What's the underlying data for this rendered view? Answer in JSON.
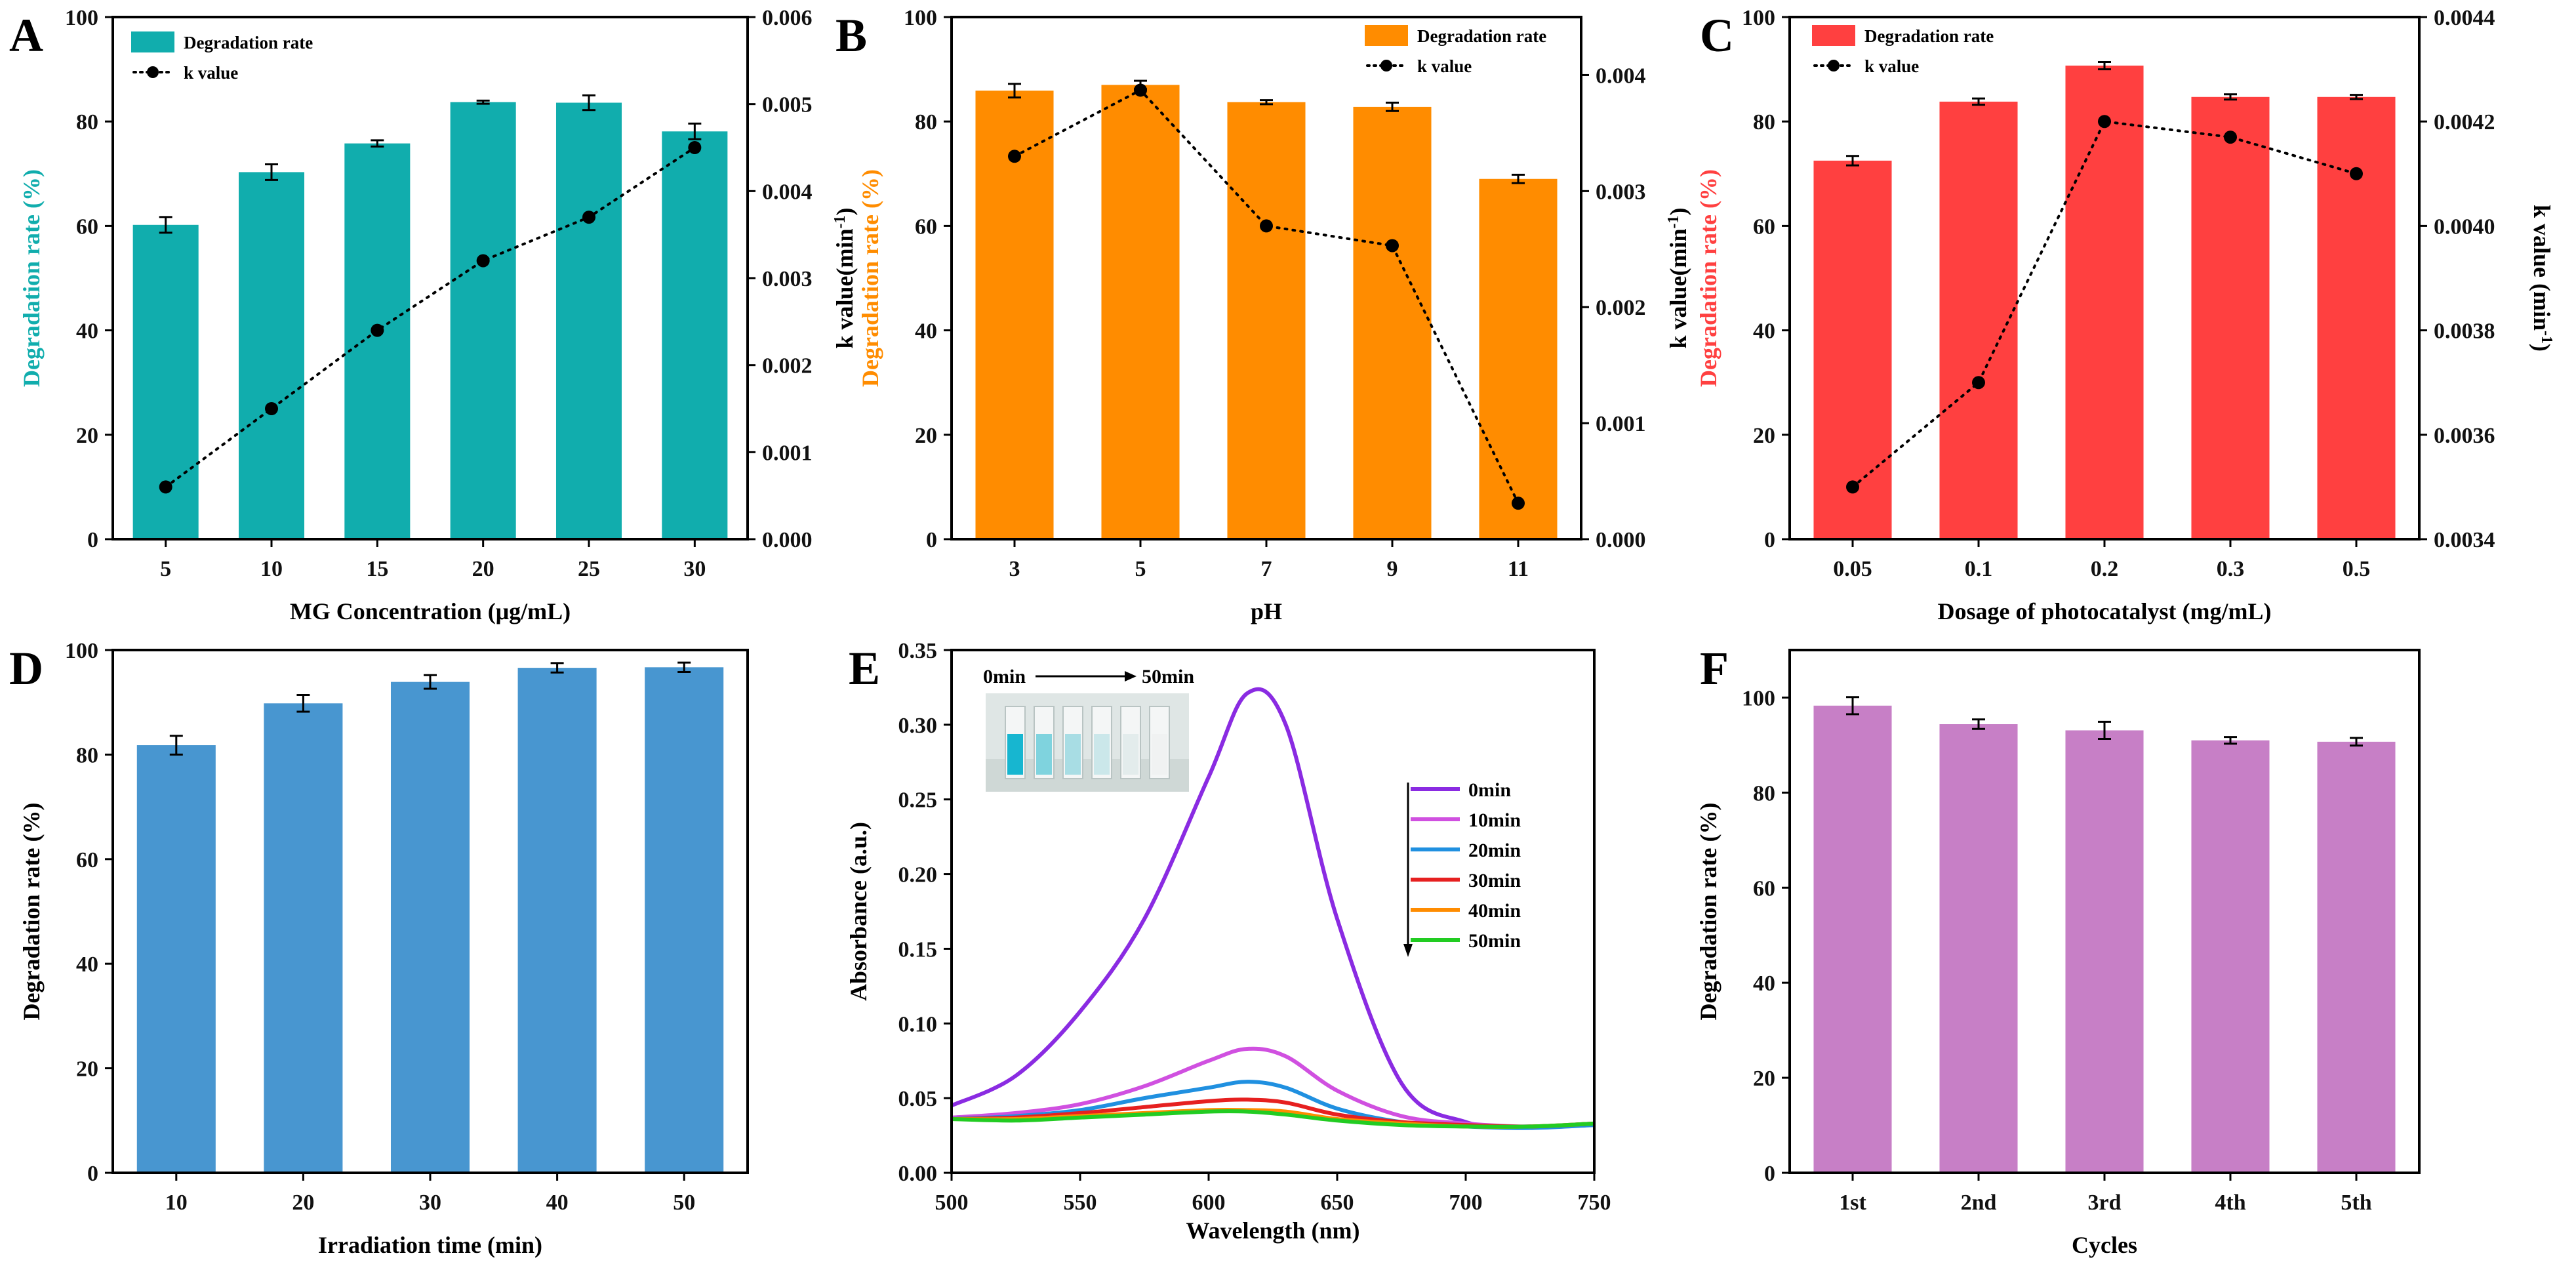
{
  "figure": {
    "panels": [
      "A",
      "B",
      "C",
      "D",
      "E",
      "F"
    ]
  },
  "chart_data": [
    {
      "id": "A",
      "type": "bar",
      "title": "",
      "color": "#11adad",
      "categories": [
        "5",
        "10",
        "15",
        "20",
        "25",
        "30"
      ],
      "values": [
        60.2,
        70.3,
        75.8,
        83.7,
        83.6,
        78.1
      ],
      "errors": [
        1.5,
        1.5,
        0.6,
        0.3,
        1.4,
        1.5
      ],
      "xlabel": "MG Concentration (μg/mL)",
      "ylabel": "Degradation rate (%)",
      "ylim": [
        0,
        100
      ],
      "yticks": [
        "0",
        "20",
        "40",
        "60",
        "80",
        "100"
      ],
      "y2label": "k value(min⁻¹)",
      "y2lim": [
        0,
        0.006
      ],
      "y2ticks": [
        "0.000",
        "0.001",
        "0.002",
        "0.003",
        "0.004",
        "0.005",
        "0.006"
      ],
      "k_values": [
        0.0006,
        0.0015,
        0.0024,
        0.0032,
        0.0037,
        0.0045
      ],
      "legend": [
        "Degradation rate",
        "k value"
      ]
    },
    {
      "id": "B",
      "type": "bar",
      "title": "",
      "color": "#ff8c00",
      "categories": [
        "3",
        "5",
        "7",
        "9",
        "11"
      ],
      "values": [
        85.9,
        87.0,
        83.7,
        82.8,
        69.0
      ],
      "errors": [
        1.3,
        0.8,
        0.4,
        0.8,
        0.8
      ],
      "xlabel": "pH",
      "ylabel": "Degradation rate (%)",
      "ylim": [
        0,
        100
      ],
      "yticks": [
        "0",
        "20",
        "40",
        "60",
        "80",
        "100"
      ],
      "y2label": "k value(min⁻¹)",
      "y2lim": [
        0,
        0.0045
      ],
      "y2ticks": [
        "0.000",
        "0.001",
        "0.002",
        "0.003",
        "0.004"
      ],
      "y2tickvals": [
        0,
        0.001,
        0.002,
        0.003,
        0.004
      ],
      "k_values": [
        0.0033,
        0.00387,
        0.0027,
        0.00253,
        0.00031
      ],
      "legend": [
        "Degradation rate",
        "k value"
      ]
    },
    {
      "id": "C",
      "type": "bar",
      "title": "",
      "color": "#ff4040",
      "categories": [
        "0.05",
        "0.1",
        "0.2",
        "0.3",
        "0.5"
      ],
      "values": [
        72.5,
        83.8,
        90.7,
        84.7,
        84.7
      ],
      "errors": [
        0.9,
        0.6,
        0.7,
        0.5,
        0.4
      ],
      "xlabel": "Dosage of photocatalyst (mg/mL)",
      "ylabel": "Degradation rate (%)",
      "ylim": [
        0,
        100
      ],
      "yticks": [
        "0",
        "20",
        "40",
        "60",
        "80",
        "100"
      ],
      "y2label": "k value (min⁻¹)",
      "y2lim": [
        0.0034,
        0.0044
      ],
      "y2ticks": [
        "0.0034",
        "0.0036",
        "0.0038",
        "0.0040",
        "0.0042",
        "0.0044"
      ],
      "k_values": [
        0.0035,
        0.0037,
        0.0042,
        0.00417,
        0.0041
      ],
      "legend": [
        "Degradation rate",
        "k value"
      ]
    },
    {
      "id": "D",
      "type": "bar",
      "title": "",
      "color": "#4896d0",
      "categories": [
        "10",
        "20",
        "30",
        "40",
        "50"
      ],
      "values": [
        81.8,
        89.8,
        93.9,
        96.6,
        96.7
      ],
      "errors": [
        1.8,
        1.6,
        1.3,
        0.9,
        0.9
      ],
      "xlabel": "Irradiation time (min)",
      "ylabel": "Degradation rate (%)",
      "ylim": [
        0,
        100
      ],
      "yticks": [
        "0",
        "20",
        "40",
        "60",
        "80",
        "100"
      ]
    },
    {
      "id": "E",
      "type": "line",
      "title": "",
      "xlabel": "Wavelength (nm)",
      "ylabel": "Absorbance (a.u.)",
      "xlim": [
        500,
        750
      ],
      "ylim": [
        0,
        0.35
      ],
      "xticks": [
        "500",
        "550",
        "600",
        "650",
        "700",
        "750"
      ],
      "yticks": [
        "0.00",
        "0.05",
        "0.10",
        "0.15",
        "0.20",
        "0.25",
        "0.30",
        "0.35"
      ],
      "inset_caption": [
        "0min",
        "50min"
      ],
      "x": [
        500,
        525,
        550,
        575,
        600,
        615,
        630,
        650,
        675,
        700,
        725,
        750
      ],
      "series": [
        {
          "name": "0min",
          "color": "#8a2be2",
          "values": [
            0.045,
            0.065,
            0.108,
            0.17,
            0.265,
            0.321,
            0.3,
            0.17,
            0.06,
            0.034,
            0.031,
            0.032
          ]
        },
        {
          "name": "10min",
          "color": "#d050e0",
          "values": [
            0.037,
            0.04,
            0.046,
            0.058,
            0.075,
            0.083,
            0.078,
            0.055,
            0.038,
            0.033,
            0.031,
            0.033
          ]
        },
        {
          "name": "20min",
          "color": "#2090e0",
          "values": [
            0.036,
            0.038,
            0.042,
            0.05,
            0.057,
            0.061,
            0.057,
            0.043,
            0.034,
            0.031,
            0.03,
            0.032
          ]
        },
        {
          "name": "30min",
          "color": "#e62020",
          "values": [
            0.036,
            0.037,
            0.04,
            0.044,
            0.048,
            0.049,
            0.047,
            0.039,
            0.034,
            0.032,
            0.031,
            0.033
          ]
        },
        {
          "name": "40min",
          "color": "#ff8c00",
          "values": [
            0.036,
            0.036,
            0.038,
            0.04,
            0.042,
            0.042,
            0.041,
            0.036,
            0.033,
            0.031,
            0.031,
            0.033
          ]
        },
        {
          "name": "50min",
          "color": "#22cc22",
          "values": [
            0.036,
            0.035,
            0.037,
            0.039,
            0.041,
            0.041,
            0.039,
            0.035,
            0.032,
            0.031,
            0.031,
            0.033
          ]
        }
      ]
    },
    {
      "id": "F",
      "type": "bar",
      "title": "",
      "color": "#c77fc6",
      "categories": [
        "1st",
        "2nd",
        "3rd",
        "4th",
        "5th"
      ],
      "values": [
        98.3,
        94.4,
        93.1,
        91.0,
        90.7
      ],
      "errors": [
        1.8,
        1.0,
        1.8,
        0.7,
        0.8
      ],
      "xlabel": "Cycles",
      "ylabel": "Degradation rate (%)",
      "ylim": [
        0,
        110
      ],
      "yticks": [
        "0",
        "20",
        "40",
        "60",
        "80",
        "100"
      ],
      "ytickvals": [
        0,
        20,
        40,
        60,
        80,
        100
      ]
    }
  ]
}
